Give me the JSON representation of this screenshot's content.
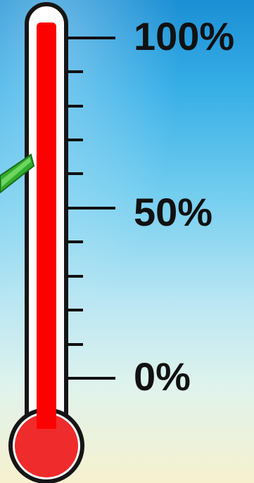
{
  "thermometer": {
    "labels": {
      "max": "100%",
      "mid": "50%",
      "min": "0%"
    },
    "level_percent": 100,
    "colors": {
      "mercury": "#ff0000",
      "bulb": "#ef2b2b",
      "tube_outline": "#1a1a1a",
      "tube_fill": "#ffffff",
      "pointer": "#32b22f",
      "ticks": "#111111"
    }
  }
}
